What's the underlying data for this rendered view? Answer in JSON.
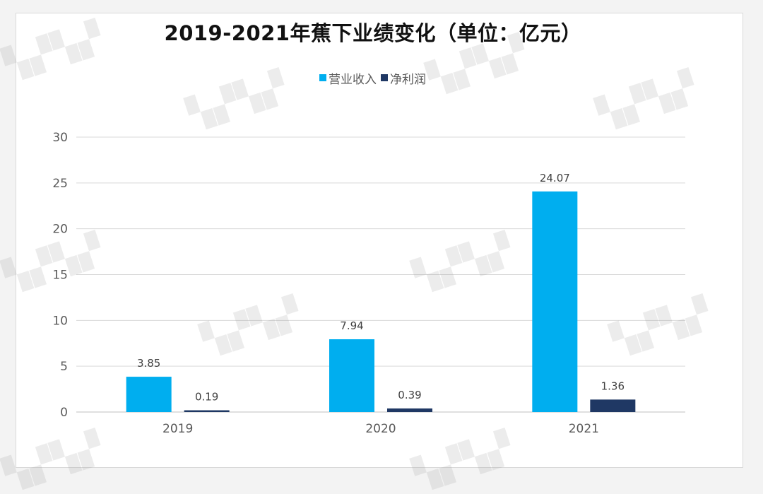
{
  "chart_data": {
    "type": "bar",
    "title": "2019-2021年蕉下业绩变化（单位：亿元）",
    "categories": [
      "2019",
      "2020",
      "2021"
    ],
    "series": [
      {
        "name": "营业收入",
        "color": "#00aeef",
        "values": [
          3.85,
          7.94,
          24.07
        ]
      },
      {
        "name": "净利润",
        "color": "#1f3864",
        "values": [
          0.19,
          0.39,
          1.36
        ]
      }
    ],
    "ylim": [
      0,
      30
    ],
    "yticks": [
      0,
      5,
      10,
      15,
      20,
      25,
      30
    ],
    "grid": true,
    "legend": "top-center",
    "data_labels": true
  }
}
